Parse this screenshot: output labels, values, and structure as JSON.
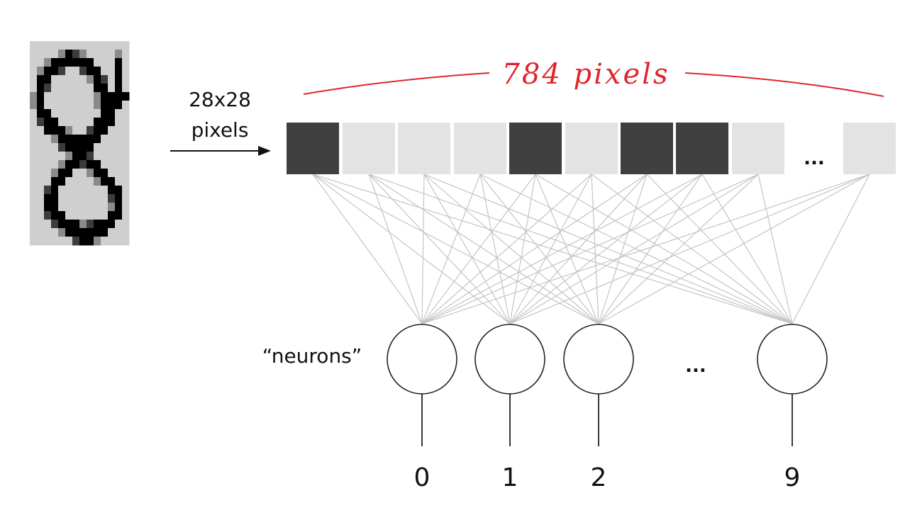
{
  "input_image": {
    "grid_size": 28,
    "description_label": "28x28",
    "description_label_2": "pixels"
  },
  "pixel_vector": {
    "count_label": "784 pixels",
    "ellipsis": "...",
    "cells": [
      "dark",
      "light",
      "light",
      "light",
      "dark",
      "light",
      "dark",
      "dark",
      "light",
      "light"
    ]
  },
  "neurons": {
    "label": "“neurons”",
    "ellipsis": "...",
    "outputs": [
      "0",
      "1",
      "2",
      "9"
    ]
  },
  "colors": {
    "dark_cell": "#404040",
    "light_cell": "#e3e3e3",
    "connection": "#c4c4c4",
    "brace": "#e0242a",
    "ink": "#111111"
  }
}
